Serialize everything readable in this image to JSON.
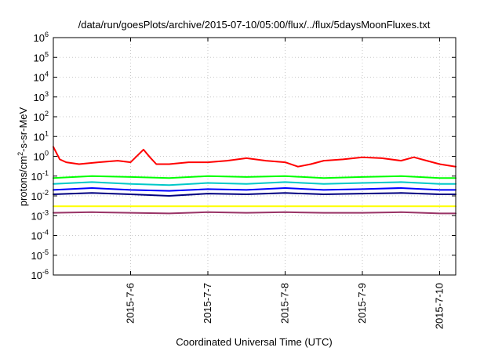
{
  "chart_data": {
    "type": "line",
    "title": "/data/run/goesPlots/archive/2015-07-10/05:00/flux/../flux/5daysMoonFluxes.txt",
    "xlabel": "Coordinated Universal Time (UTC)",
    "ylabel": {
      "pre": "protons/cm",
      "sup": "2",
      "post": "-s-sr-MeV"
    },
    "x_scale": "time",
    "x_range": [
      "2015-07-05 00:00",
      "2015-07-10 05:00"
    ],
    "x_ticks": [
      "2015-7-6",
      "2015-7-7",
      "2015-7-8",
      "2015-7-9",
      "2015-7-10"
    ],
    "y_scale": "log",
    "ylim": [
      1e-06,
      1000000.0
    ],
    "y_ticks": [
      {
        "base": "10",
        "exp": "-6",
        "value": 1e-06
      },
      {
        "base": "10",
        "exp": "-5",
        "value": 1e-05
      },
      {
        "base": "10",
        "exp": "-4",
        "value": 0.0001
      },
      {
        "base": "10",
        "exp": "-3",
        "value": 0.001
      },
      {
        "base": "10",
        "exp": "-2",
        "value": 0.01
      },
      {
        "base": "10",
        "exp": "-1",
        "value": 0.1
      },
      {
        "base": "10",
        "exp": "0",
        "value": 1
      },
      {
        "base": "10",
        "exp": "1",
        "value": 10
      },
      {
        "base": "10",
        "exp": "2",
        "value": 100
      },
      {
        "base": "10",
        "exp": "3",
        "value": 1000
      },
      {
        "base": "10",
        "exp": "4",
        "value": 10000
      },
      {
        "base": "10",
        "exp": "5",
        "value": 100000
      },
      {
        "base": "10",
        "exp": "6",
        "value": 1000000
      }
    ],
    "grid": true,
    "legend": "none",
    "series": [
      {
        "color": "#ff0000",
        "x": [
          "2015-07-05 00:00",
          "2015-07-05 02:00",
          "2015-07-05 04:00",
          "2015-07-05 08:00",
          "2015-07-05 14:00",
          "2015-07-05 20:00",
          "2015-07-06 00:00",
          "2015-07-06 04:00",
          "2015-07-06 06:00",
          "2015-07-06 08:00",
          "2015-07-06 12:00",
          "2015-07-06 18:00",
          "2015-07-07 00:00",
          "2015-07-07 06:00",
          "2015-07-07 12:00",
          "2015-07-07 18:00",
          "2015-07-08 00:00",
          "2015-07-08 04:00",
          "2015-07-08 08:00",
          "2015-07-08 12:00",
          "2015-07-08 18:00",
          "2015-07-09 00:00",
          "2015-07-09 06:00",
          "2015-07-09 12:00",
          "2015-07-09 16:00",
          "2015-07-09 20:00",
          "2015-07-10 00:00",
          "2015-07-10 05:00"
        ],
        "y": [
          3.0,
          0.7,
          0.5,
          0.4,
          0.5,
          0.6,
          0.5,
          2.2,
          0.9,
          0.4,
          0.4,
          0.5,
          0.5,
          0.6,
          0.8,
          0.6,
          0.5,
          0.3,
          0.4,
          0.6,
          0.7,
          0.9,
          0.8,
          0.6,
          0.9,
          0.6,
          0.4,
          0.3
        ]
      },
      {
        "color": "#00ff00",
        "x": [
          "2015-07-05 00:00",
          "2015-07-05 12:00",
          "2015-07-06 00:00",
          "2015-07-06 12:00",
          "2015-07-07 00:00",
          "2015-07-07 12:00",
          "2015-07-08 00:00",
          "2015-07-08 12:00",
          "2015-07-09 00:00",
          "2015-07-09 12:00",
          "2015-07-10 00:00",
          "2015-07-10 05:00"
        ],
        "y": [
          0.08,
          0.1,
          0.09,
          0.08,
          0.1,
          0.09,
          0.1,
          0.08,
          0.09,
          0.1,
          0.08,
          0.08
        ]
      },
      {
        "color": "#00c8c8",
        "x": [
          "2015-07-05 00:00",
          "2015-07-05 12:00",
          "2015-07-06 00:00",
          "2015-07-06 12:00",
          "2015-07-07 00:00",
          "2015-07-07 12:00",
          "2015-07-08 00:00",
          "2015-07-08 12:00",
          "2015-07-09 00:00",
          "2015-07-09 12:00",
          "2015-07-10 00:00",
          "2015-07-10 05:00"
        ],
        "y": [
          0.04,
          0.05,
          0.04,
          0.035,
          0.045,
          0.04,
          0.05,
          0.04,
          0.045,
          0.05,
          0.04,
          0.04
        ]
      },
      {
        "color": "#0000ff",
        "x": [
          "2015-07-05 00:00",
          "2015-07-05 12:00",
          "2015-07-06 00:00",
          "2015-07-06 12:00",
          "2015-07-07 00:00",
          "2015-07-07 12:00",
          "2015-07-08 00:00",
          "2015-07-08 12:00",
          "2015-07-09 00:00",
          "2015-07-09 12:00",
          "2015-07-10 00:00",
          "2015-07-10 05:00"
        ],
        "y": [
          0.02,
          0.025,
          0.02,
          0.018,
          0.022,
          0.02,
          0.025,
          0.02,
          0.022,
          0.025,
          0.02,
          0.02
        ]
      },
      {
        "color": "#000080",
        "x": [
          "2015-07-05 00:00",
          "2015-07-05 12:00",
          "2015-07-06 00:00",
          "2015-07-06 12:00",
          "2015-07-07 00:00",
          "2015-07-07 12:00",
          "2015-07-08 00:00",
          "2015-07-08 12:00",
          "2015-07-09 00:00",
          "2015-07-09 12:00",
          "2015-07-10 00:00",
          "2015-07-10 05:00"
        ],
        "y": [
          0.012,
          0.014,
          0.012,
          0.01,
          0.013,
          0.012,
          0.014,
          0.012,
          0.013,
          0.014,
          0.012,
          0.012
        ]
      },
      {
        "color": "#ffff00",
        "x": [
          "2015-07-05 00:00",
          "2015-07-05 12:00",
          "2015-07-06 00:00",
          "2015-07-06 12:00",
          "2015-07-07 00:00",
          "2015-07-07 12:00",
          "2015-07-08 00:00",
          "2015-07-08 12:00",
          "2015-07-09 00:00",
          "2015-07-09 12:00",
          "2015-07-10 00:00",
          "2015-07-10 05:00"
        ],
        "y": [
          0.003,
          0.003,
          0.003,
          0.003,
          0.003,
          0.003,
          0.003,
          0.003,
          0.003,
          0.003,
          0.003,
          0.003
        ]
      },
      {
        "color": "#993366",
        "x": [
          "2015-07-05 00:00",
          "2015-07-05 12:00",
          "2015-07-06 00:00",
          "2015-07-06 12:00",
          "2015-07-07 00:00",
          "2015-07-07 12:00",
          "2015-07-08 00:00",
          "2015-07-08 12:00",
          "2015-07-09 00:00",
          "2015-07-09 12:00",
          "2015-07-10 00:00",
          "2015-07-10 05:00"
        ],
        "y": [
          0.0014,
          0.0015,
          0.0014,
          0.0013,
          0.0015,
          0.0014,
          0.0015,
          0.0014,
          0.0014,
          0.0015,
          0.0013,
          0.0013
        ]
      }
    ]
  }
}
